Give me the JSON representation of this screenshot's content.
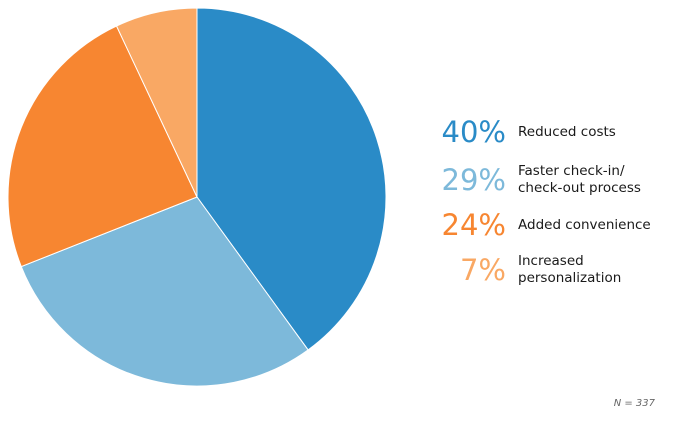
{
  "chart_data": {
    "type": "pie",
    "slices": [
      {
        "label": "Reduced costs",
        "value": 40,
        "display": "40%",
        "color": "#2a8bc7"
      },
      {
        "label": "Faster check-in/\ncheck-out process",
        "value": 29,
        "display": "29%",
        "color": "#7db9da"
      },
      {
        "label": "Added convenience",
        "value": 24,
        "display": "24%",
        "color": "#f78631"
      },
      {
        "label": "Increased\npersonalization",
        "value": 7,
        "display": "7%",
        "color": "#f9a864"
      }
    ],
    "legend_placement": "right",
    "note": "N = 337"
  }
}
